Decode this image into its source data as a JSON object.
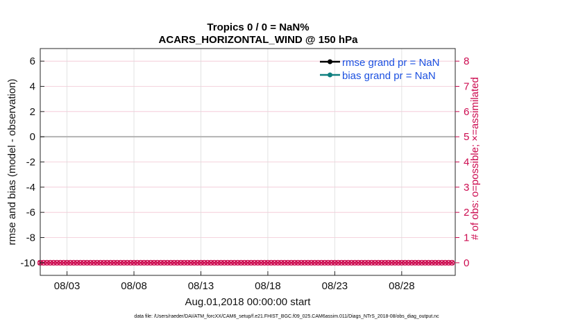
{
  "chart_data": {
    "type": "line",
    "title": "Tropics 0 / 0 = NaN%",
    "subtitle": "ACARS_HORIZONTAL_WIND @ 150 hPa",
    "xlabel": "Aug.01,2018 00:00:00 start",
    "ylabel": "rmse and bias (model - observation)",
    "y2label": "# of obs: o=possible; ×=assimilated",
    "x_tick_labels": [
      "08/03",
      "08/08",
      "08/13",
      "08/18",
      "08/23",
      "08/28"
    ],
    "x_tick_days": [
      3,
      8,
      13,
      18,
      23,
      28
    ],
    "xlim": [
      1,
      32
    ],
    "ylim": [
      -11,
      7
    ],
    "y_ticks": [
      6,
      4,
      2,
      0,
      -2,
      -4,
      -6,
      -8,
      -10
    ],
    "y2lim": [
      -0.5,
      8.5
    ],
    "y2_ticks": [
      8,
      7,
      6,
      5,
      4,
      3,
      2,
      1,
      0
    ],
    "grid": true,
    "zero_line": 0,
    "legend": {
      "position": "top-right",
      "entries": [
        {
          "label": "rmse grand pr = NaN",
          "color": "#000000"
        },
        {
          "label": "bias grand pr = NaN",
          "color": "#0e7f7f"
        }
      ]
    },
    "series": [
      {
        "name": "rmse",
        "values": []
      },
      {
        "name": "bias",
        "values": []
      },
      {
        "name": "obs possible",
        "axis": "right",
        "marker": "o",
        "color": "#cc0a4f",
        "start_day": 1,
        "step_days": 0.25,
        "count": 124,
        "value": 0
      },
      {
        "name": "obs assimilated",
        "axis": "right",
        "marker": "x",
        "color": "#cc0a4f",
        "start_day": 1,
        "step_days": 0.25,
        "count": 124,
        "value": 0
      }
    ]
  },
  "footer": {
    "data_file": "data file: /Users/raeder/DAI/ATM_forcXX/CAM6_setup/f.e21.FHIST_BGC.f09_025.CAM6assim.011/Diags_NTrS_2018-08/obs_diag_output.nc"
  }
}
